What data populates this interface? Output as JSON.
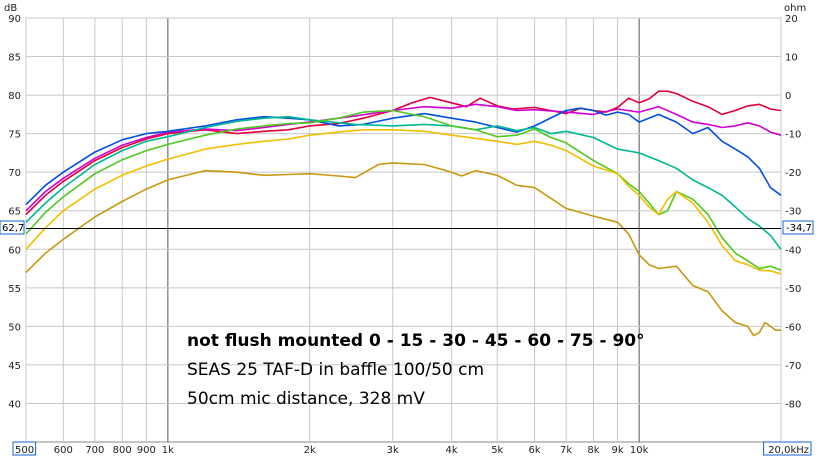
{
  "chart_data": {
    "type": "line",
    "xscale": "log",
    "xlim": [
      500,
      20000
    ],
    "ylim_left": [
      35,
      90
    ],
    "ylim_right": [
      -90,
      20
    ],
    "ylabel_left": "dB",
    "ylabel_right": "ohm",
    "xlabel": "",
    "x_ticks": [
      {
        "v": 500,
        "label": "500",
        "boxed": true
      },
      {
        "v": 600,
        "label": "600"
      },
      {
        "v": 700,
        "label": "700"
      },
      {
        "v": 800,
        "label": "800"
      },
      {
        "v": 900,
        "label": "900"
      },
      {
        "v": 1000,
        "label": "1k"
      },
      {
        "v": 2000,
        "label": "2k"
      },
      {
        "v": 3000,
        "label": "3k"
      },
      {
        "v": 4000,
        "label": "4k"
      },
      {
        "v": 5000,
        "label": "5k"
      },
      {
        "v": 6000,
        "label": "6k"
      },
      {
        "v": 7000,
        "label": "7k"
      },
      {
        "v": 8000,
        "label": "8k"
      },
      {
        "v": 9000,
        "label": "9k"
      },
      {
        "v": 10000,
        "label": "10k"
      },
      {
        "v": 20000,
        "label": "20,0kHz",
        "boxed": true
      }
    ],
    "major_x": [
      1000,
      10000
    ],
    "y_ticks_left": [
      "90",
      "85",
      "80",
      "75",
      "70",
      "65",
      "60",
      "55",
      "50",
      "45",
      "40"
    ],
    "y_ticks_right": [
      "20",
      "10",
      "0",
      "-10",
      "-20",
      "-30",
      "-40",
      "-50",
      "-60",
      "-70",
      "-80"
    ],
    "cursor": {
      "y": 62.7,
      "left_label": "62,7",
      "right_label": "-34,7"
    },
    "grid": true,
    "annotations": [
      "not flush mounted 0 - 15 - 30 - 45 - 60 - 75 - 90°",
      "SEAS 25 TAF-D in baffle 100/50 cm",
      "50cm mic distance, 328 mV"
    ],
    "series": [
      {
        "color": "#e0003c",
        "points": [
          [
            500,
            64.5
          ],
          [
            550,
            67
          ],
          [
            600,
            68.8
          ],
          [
            700,
            71.5
          ],
          [
            800,
            73.2
          ],
          [
            900,
            74.3
          ],
          [
            1000,
            75
          ],
          [
            1200,
            75.5
          ],
          [
            1400,
            75
          ],
          [
            1600,
            75.3
          ],
          [
            1800,
            75.5
          ],
          [
            2000,
            76
          ],
          [
            2300,
            76.3
          ],
          [
            2600,
            77
          ],
          [
            3000,
            78
          ],
          [
            3300,
            79
          ],
          [
            3600,
            79.7
          ],
          [
            4000,
            79
          ],
          [
            4300,
            78.5
          ],
          [
            4600,
            79.6
          ],
          [
            5000,
            78.6
          ],
          [
            5400,
            78.2
          ],
          [
            6000,
            78.4
          ],
          [
            7000,
            77.6
          ],
          [
            7500,
            78.3
          ],
          [
            8000,
            78
          ],
          [
            8500,
            77.8
          ],
          [
            9000,
            78.4
          ],
          [
            9500,
            79.6
          ],
          [
            10000,
            79
          ],
          [
            10500,
            79.5
          ],
          [
            11000,
            80.5
          ],
          [
            11500,
            80.5
          ],
          [
            12000,
            80.2
          ],
          [
            13000,
            79.2
          ],
          [
            14000,
            78.5
          ],
          [
            15000,
            77.5
          ],
          [
            16000,
            78
          ],
          [
            17000,
            78.6
          ],
          [
            18000,
            78.8
          ],
          [
            19000,
            78.2
          ],
          [
            20000,
            78
          ]
        ]
      },
      {
        "color": "#d000d0",
        "points": [
          [
            500,
            65
          ],
          [
            550,
            67.5
          ],
          [
            600,
            69.2
          ],
          [
            700,
            71.8
          ],
          [
            800,
            73.5
          ],
          [
            900,
            74.5
          ],
          [
            1000,
            75.2
          ],
          [
            1200,
            75.6
          ],
          [
            1400,
            75.4
          ],
          [
            1600,
            75.8
          ],
          [
            1800,
            76.2
          ],
          [
            2000,
            76.5
          ],
          [
            2500,
            77.3
          ],
          [
            3000,
            78
          ],
          [
            3500,
            78.5
          ],
          [
            4000,
            78.3
          ],
          [
            4500,
            78.8
          ],
          [
            5000,
            78.5
          ],
          [
            5500,
            78
          ],
          [
            6000,
            78.1
          ],
          [
            7000,
            77.8
          ],
          [
            8000,
            77.5
          ],
          [
            9000,
            78.2
          ],
          [
            10000,
            77.8
          ],
          [
            11000,
            78.5
          ],
          [
            12000,
            77.5
          ],
          [
            13000,
            76.5
          ],
          [
            14000,
            76.2
          ],
          [
            15000,
            75.8
          ],
          [
            16000,
            76
          ],
          [
            17000,
            76.4
          ],
          [
            18000,
            76
          ],
          [
            19000,
            75.2
          ],
          [
            20000,
            74.8
          ]
        ]
      },
      {
        "color": "#0050e0",
        "points": [
          [
            500,
            65.8
          ],
          [
            550,
            68.3
          ],
          [
            600,
            70
          ],
          [
            700,
            72.6
          ],
          [
            800,
            74.2
          ],
          [
            900,
            75
          ],
          [
            1000,
            75.3
          ],
          [
            1200,
            76
          ],
          [
            1400,
            76.8
          ],
          [
            1600,
            77.2
          ],
          [
            1800,
            77
          ],
          [
            2000,
            76.8
          ],
          [
            2300,
            76
          ],
          [
            2600,
            76.2
          ],
          [
            3000,
            77
          ],
          [
            3500,
            77.6
          ],
          [
            4000,
            77
          ],
          [
            4500,
            76.5
          ],
          [
            5000,
            75.8
          ],
          [
            5500,
            75.2
          ],
          [
            6000,
            76
          ],
          [
            7000,
            78
          ],
          [
            7500,
            78.3
          ],
          [
            8000,
            78
          ],
          [
            8500,
            77.4
          ],
          [
            9000,
            77.8
          ],
          [
            9500,
            77.5
          ],
          [
            10000,
            76.5
          ],
          [
            11000,
            77.5
          ],
          [
            12000,
            76.5
          ],
          [
            13000,
            75
          ],
          [
            14000,
            75.8
          ],
          [
            15000,
            74
          ],
          [
            16000,
            73
          ],
          [
            17000,
            72
          ],
          [
            18000,
            70.5
          ],
          [
            19000,
            68
          ],
          [
            20000,
            67
          ]
        ]
      },
      {
        "color": "#00b890",
        "points": [
          [
            500,
            63.5
          ],
          [
            550,
            66
          ],
          [
            600,
            68
          ],
          [
            700,
            71
          ],
          [
            800,
            72.8
          ],
          [
            900,
            74
          ],
          [
            1000,
            74.6
          ],
          [
            1200,
            75.8
          ],
          [
            1400,
            76.6
          ],
          [
            1600,
            77
          ],
          [
            1800,
            77.2
          ],
          [
            2000,
            76.8
          ],
          [
            2500,
            76.2
          ],
          [
            3000,
            76
          ],
          [
            3500,
            76.2
          ],
          [
            4000,
            76
          ],
          [
            4500,
            75.5
          ],
          [
            5000,
            76
          ],
          [
            5500,
            75.4
          ],
          [
            6000,
            75.8
          ],
          [
            6500,
            75
          ],
          [
            7000,
            75.3
          ],
          [
            8000,
            74.5
          ],
          [
            9000,
            73
          ],
          [
            10000,
            72.5
          ],
          [
            11000,
            71.5
          ],
          [
            12000,
            70.5
          ],
          [
            13000,
            69
          ],
          [
            14000,
            68
          ],
          [
            15000,
            67
          ],
          [
            16000,
            65.5
          ],
          [
            17000,
            64
          ],
          [
            18000,
            63
          ],
          [
            19000,
            61.8
          ],
          [
            20000,
            60
          ]
        ]
      },
      {
        "color": "#50c820",
        "points": [
          [
            500,
            62
          ],
          [
            550,
            64.8
          ],
          [
            600,
            66.8
          ],
          [
            700,
            69.8
          ],
          [
            800,
            71.6
          ],
          [
            900,
            72.8
          ],
          [
            1000,
            73.6
          ],
          [
            1200,
            74.8
          ],
          [
            1400,
            75.6
          ],
          [
            1600,
            76
          ],
          [
            1800,
            76.3
          ],
          [
            2000,
            76.4
          ],
          [
            2300,
            77
          ],
          [
            2600,
            77.8
          ],
          [
            3000,
            78
          ],
          [
            3500,
            77.2
          ],
          [
            4000,
            76
          ],
          [
            4500,
            75.5
          ],
          [
            5000,
            74.6
          ],
          [
            5500,
            74.8
          ],
          [
            6000,
            75.6
          ],
          [
            6500,
            74.5
          ],
          [
            7000,
            73.8
          ],
          [
            8000,
            71.5
          ],
          [
            9000,
            69.8
          ],
          [
            9500,
            68.5
          ],
          [
            10000,
            67.5
          ],
          [
            10500,
            66
          ],
          [
            11000,
            64.5
          ],
          [
            11500,
            65
          ],
          [
            12000,
            67.5
          ],
          [
            13000,
            66.5
          ],
          [
            14000,
            64.5
          ],
          [
            15000,
            61.5
          ],
          [
            16000,
            59.5
          ],
          [
            17000,
            58.5
          ],
          [
            18000,
            57.5
          ],
          [
            19000,
            57.8
          ],
          [
            20000,
            57.3
          ]
        ]
      },
      {
        "color": "#f0c000",
        "points": [
          [
            500,
            60
          ],
          [
            550,
            62.8
          ],
          [
            600,
            65
          ],
          [
            700,
            67.8
          ],
          [
            800,
            69.6
          ],
          [
            900,
            70.8
          ],
          [
            1000,
            71.7
          ],
          [
            1200,
            73
          ],
          [
            1400,
            73.6
          ],
          [
            1600,
            74
          ],
          [
            1800,
            74.3
          ],
          [
            2000,
            74.8
          ],
          [
            2300,
            75.2
          ],
          [
            2600,
            75.5
          ],
          [
            3000,
            75.5
          ],
          [
            3500,
            75.3
          ],
          [
            4000,
            74.8
          ],
          [
            4500,
            74.4
          ],
          [
            5000,
            74
          ],
          [
            5500,
            73.6
          ],
          [
            6000,
            74
          ],
          [
            6500,
            73.5
          ],
          [
            7000,
            72.8
          ],
          [
            8000,
            70.8
          ],
          [
            9000,
            69.8
          ],
          [
            9500,
            68.2
          ],
          [
            10000,
            67
          ],
          [
            10500,
            65.5
          ],
          [
            11000,
            64.5
          ],
          [
            11500,
            66.5
          ],
          [
            12000,
            67.5
          ],
          [
            13000,
            66
          ],
          [
            14000,
            63.5
          ],
          [
            15000,
            60.5
          ],
          [
            16000,
            58.5
          ],
          [
            17000,
            58
          ],
          [
            18000,
            57.3
          ],
          [
            19000,
            57.2
          ],
          [
            20000,
            56.8
          ]
        ]
      },
      {
        "color": "#c89810",
        "points": [
          [
            500,
            57
          ],
          [
            550,
            59.5
          ],
          [
            600,
            61.3
          ],
          [
            700,
            64.2
          ],
          [
            800,
            66.2
          ],
          [
            900,
            67.8
          ],
          [
            1000,
            69
          ],
          [
            1200,
            70.2
          ],
          [
            1400,
            70
          ],
          [
            1600,
            69.6
          ],
          [
            1800,
            69.7
          ],
          [
            2000,
            69.8
          ],
          [
            2300,
            69.5
          ],
          [
            2500,
            69.3
          ],
          [
            2800,
            71
          ],
          [
            3000,
            71.2
          ],
          [
            3500,
            71
          ],
          [
            4000,
            70
          ],
          [
            4200,
            69.5
          ],
          [
            4500,
            70.2
          ],
          [
            5000,
            69.6
          ],
          [
            5500,
            68.3
          ],
          [
            6000,
            68
          ],
          [
            6500,
            66.6
          ],
          [
            7000,
            65.3
          ],
          [
            8000,
            64.3
          ],
          [
            9000,
            63.5
          ],
          [
            9500,
            62
          ],
          [
            10000,
            59.3
          ],
          [
            10500,
            58
          ],
          [
            11000,
            57.5
          ],
          [
            12000,
            57.8
          ],
          [
            13000,
            55.3
          ],
          [
            14000,
            54.5
          ],
          [
            15000,
            52
          ],
          [
            16000,
            50.5
          ],
          [
            17000,
            50
          ],
          [
            17500,
            48.8
          ],
          [
            18000,
            49.2
          ],
          [
            18500,
            50.5
          ],
          [
            19000,
            50
          ],
          [
            19500,
            49.5
          ],
          [
            20000,
            49.5
          ]
        ]
      }
    ]
  }
}
